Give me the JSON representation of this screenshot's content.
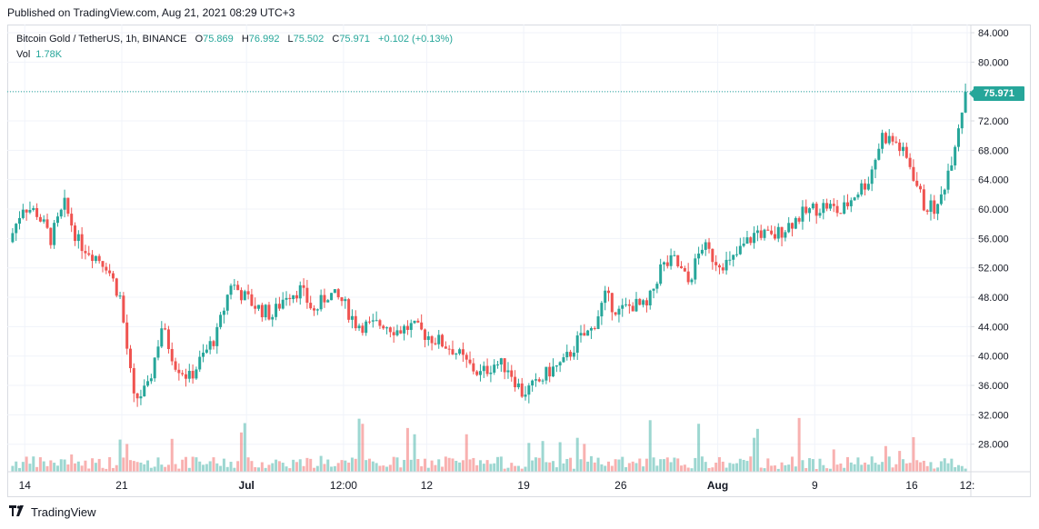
{
  "header": {
    "published": "Published on TradingView.com, Aug 21, 2021 08:29 UTC+3"
  },
  "legend": {
    "symbol": "Bitcoin Gold / TetherUS, 1h, BINANCE",
    "o_label": "O",
    "o_value": "75.869",
    "h_label": "H",
    "h_value": "76.992",
    "l_label": "L",
    "l_value": "75.502",
    "c_label": "C",
    "c_value": "75.971",
    "change": "+0.102 (+0.13%)",
    "vol_label": "Vol",
    "vol_value": "1.78K"
  },
  "last_price_tag": "75.971",
  "footer": {
    "brand": "TradingView",
    "logo": "tradingview-logo-icon"
  },
  "colors": {
    "up": "#26a69a",
    "down": "#ef5350",
    "grid": "#f0f3fa",
    "text": "#131722",
    "border": "#d8dbe1"
  },
  "chart_data": {
    "type": "candlestick",
    "title": "Bitcoin Gold / TetherUS, 1h, BINANCE",
    "x_tick_labels": [
      "14",
      "21",
      "Jul",
      "12:00",
      "12",
      "19",
      "26",
      "Aug",
      "9",
      "16",
      "12:"
    ],
    "y_tick_labels": [
      "84.000",
      "80.000",
      "76.000",
      "72.000",
      "68.000",
      "64.000",
      "60.000",
      "56.000",
      "52.000",
      "48.000",
      "44.000",
      "40.000",
      "36.000",
      "32.000",
      "28.000"
    ],
    "ylim": [
      24.5,
      84
    ],
    "grid": true,
    "last_price": 75.971,
    "close_series_approx": [
      {
        "t": "Jun 13",
        "c": 55.5
      },
      {
        "t": "Jun 14",
        "c": 60.5
      },
      {
        "t": "Jun 15",
        "c": 59.5
      },
      {
        "t": "Jun 16",
        "c": 56
      },
      {
        "t": "Jun 17",
        "c": 60.5
      },
      {
        "t": "Jun 18",
        "c": 55.5
      },
      {
        "t": "Jun 19",
        "c": 54
      },
      {
        "t": "Jun 20",
        "c": 52.5
      },
      {
        "t": "Jun 21",
        "c": 48
      },
      {
        "t": "Jun 22",
        "c": 34
      },
      {
        "t": "Jun 23",
        "c": 35.5
      },
      {
        "t": "Jun 24",
        "c": 44
      },
      {
        "t": "Jun 25",
        "c": 39
      },
      {
        "t": "Jun 26",
        "c": 37
      },
      {
        "t": "Jun 27",
        "c": 40
      },
      {
        "t": "Jun 28",
        "c": 43
      },
      {
        "t": "Jun 29",
        "c": 50
      },
      {
        "t": "Jun 30",
        "c": 48
      },
      {
        "t": "Jul 01",
        "c": 46.5
      },
      {
        "t": "Jul 02",
        "c": 45.5
      },
      {
        "t": "Jul 03",
        "c": 48.5
      },
      {
        "t": "Jul 04",
        "c": 49
      },
      {
        "t": "Jul 05",
        "c": 46
      },
      {
        "t": "Jul 06",
        "c": 48.5
      },
      {
        "t": "Jul 07",
        "c": 47.5
      },
      {
        "t": "Jul 08",
        "c": 44.5
      },
      {
        "t": "Jul 09",
        "c": 44
      },
      {
        "t": "Jul 10",
        "c": 44.5
      },
      {
        "t": "Jul 11",
        "c": 43.5
      },
      {
        "t": "Jul 12",
        "c": 44
      },
      {
        "t": "Jul 13",
        "c": 43
      },
      {
        "t": "Jul 14",
        "c": 42
      },
      {
        "t": "Jul 15",
        "c": 41
      },
      {
        "t": "Jul 16",
        "c": 39
      },
      {
        "t": "Jul 17",
        "c": 37.5
      },
      {
        "t": "Jul 18",
        "c": 39
      },
      {
        "t": "Jul 19",
        "c": 38.5
      },
      {
        "t": "Jul 20",
        "c": 35
      },
      {
        "t": "Jul 21",
        "c": 36
      },
      {
        "t": "Jul 22",
        "c": 38
      },
      {
        "t": "Jul 23",
        "c": 39
      },
      {
        "t": "Jul 24",
        "c": 42
      },
      {
        "t": "Jul 25",
        "c": 43.5
      },
      {
        "t": "Jul 26",
        "c": 48
      },
      {
        "t": "Jul 27",
        "c": 46
      },
      {
        "t": "Jul 28",
        "c": 47
      },
      {
        "t": "Jul 29",
        "c": 46.5
      },
      {
        "t": "Jul 30",
        "c": 52
      },
      {
        "t": "Jul 31",
        "c": 53
      },
      {
        "t": "Aug 01",
        "c": 50
      },
      {
        "t": "Aug 02",
        "c": 55
      },
      {
        "t": "Aug 03",
        "c": 53
      },
      {
        "t": "Aug 04",
        "c": 52.5
      },
      {
        "t": "Aug 05",
        "c": 55
      },
      {
        "t": "Aug 06",
        "c": 57
      },
      {
        "t": "Aug 07",
        "c": 56
      },
      {
        "t": "Aug 08",
        "c": 57.5
      },
      {
        "t": "Aug 09",
        "c": 59
      },
      {
        "t": "Aug 10",
        "c": 60
      },
      {
        "t": "Aug 11",
        "c": 60.5
      },
      {
        "t": "Aug 12",
        "c": 59.5
      },
      {
        "t": "Aug 13",
        "c": 62
      },
      {
        "t": "Aug 14",
        "c": 64
      },
      {
        "t": "Aug 15",
        "c": 70
      },
      {
        "t": "Aug 16",
        "c": 69
      },
      {
        "t": "Aug 17",
        "c": 66
      },
      {
        "t": "Aug 18",
        "c": 60.5
      },
      {
        "t": "Aug 19",
        "c": 60
      },
      {
        "t": "Aug 20",
        "c": 67
      },
      {
        "t": "Aug 21",
        "c": 75.97
      }
    ]
  }
}
